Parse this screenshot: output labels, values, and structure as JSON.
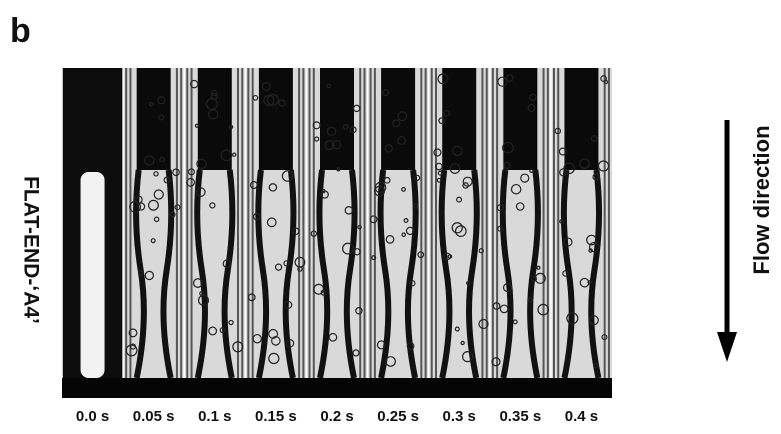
{
  "panel_label": "b",
  "side_label": "FLAT-END-‘A4’",
  "flow_label": "Flow direction",
  "time_labels": [
    "0.0 s",
    "0.05 s",
    "0.1 s",
    "0.15 s",
    "0.2 s",
    "0.25 s",
    "0.3 s",
    "0.35 s",
    "0.4 s"
  ]
}
